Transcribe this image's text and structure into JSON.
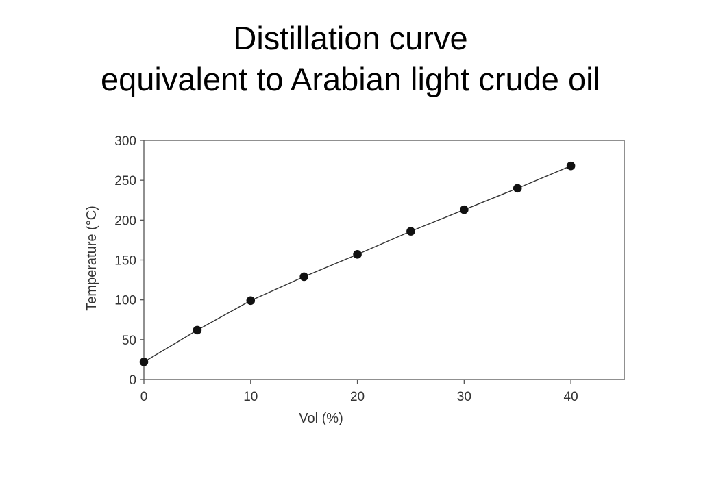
{
  "slide": {
    "title_line1": "Distillation curve",
    "title_line2": "equivalent to Arabian light crude oil"
  },
  "chart_data": {
    "type": "line",
    "title": "",
    "xlabel": "Vol (%)",
    "ylabel": "Temperature (°C)",
    "xlim": [
      0,
      45
    ],
    "ylim": [
      0,
      300
    ],
    "xticks": [
      0,
      10,
      20,
      30,
      40
    ],
    "yticks": [
      0,
      50,
      100,
      150,
      200,
      250,
      300
    ],
    "grid": false,
    "legend": "none",
    "markers": true,
    "colors": {
      "line": "#333333",
      "marker": "#111111",
      "frame": "#555555"
    },
    "series": [
      {
        "x": [
          0,
          5,
          10,
          15,
          20,
          25,
          30,
          35,
          40
        ],
        "y": [
          22,
          62,
          99,
          129,
          157,
          186,
          213,
          240,
          268
        ]
      }
    ]
  }
}
